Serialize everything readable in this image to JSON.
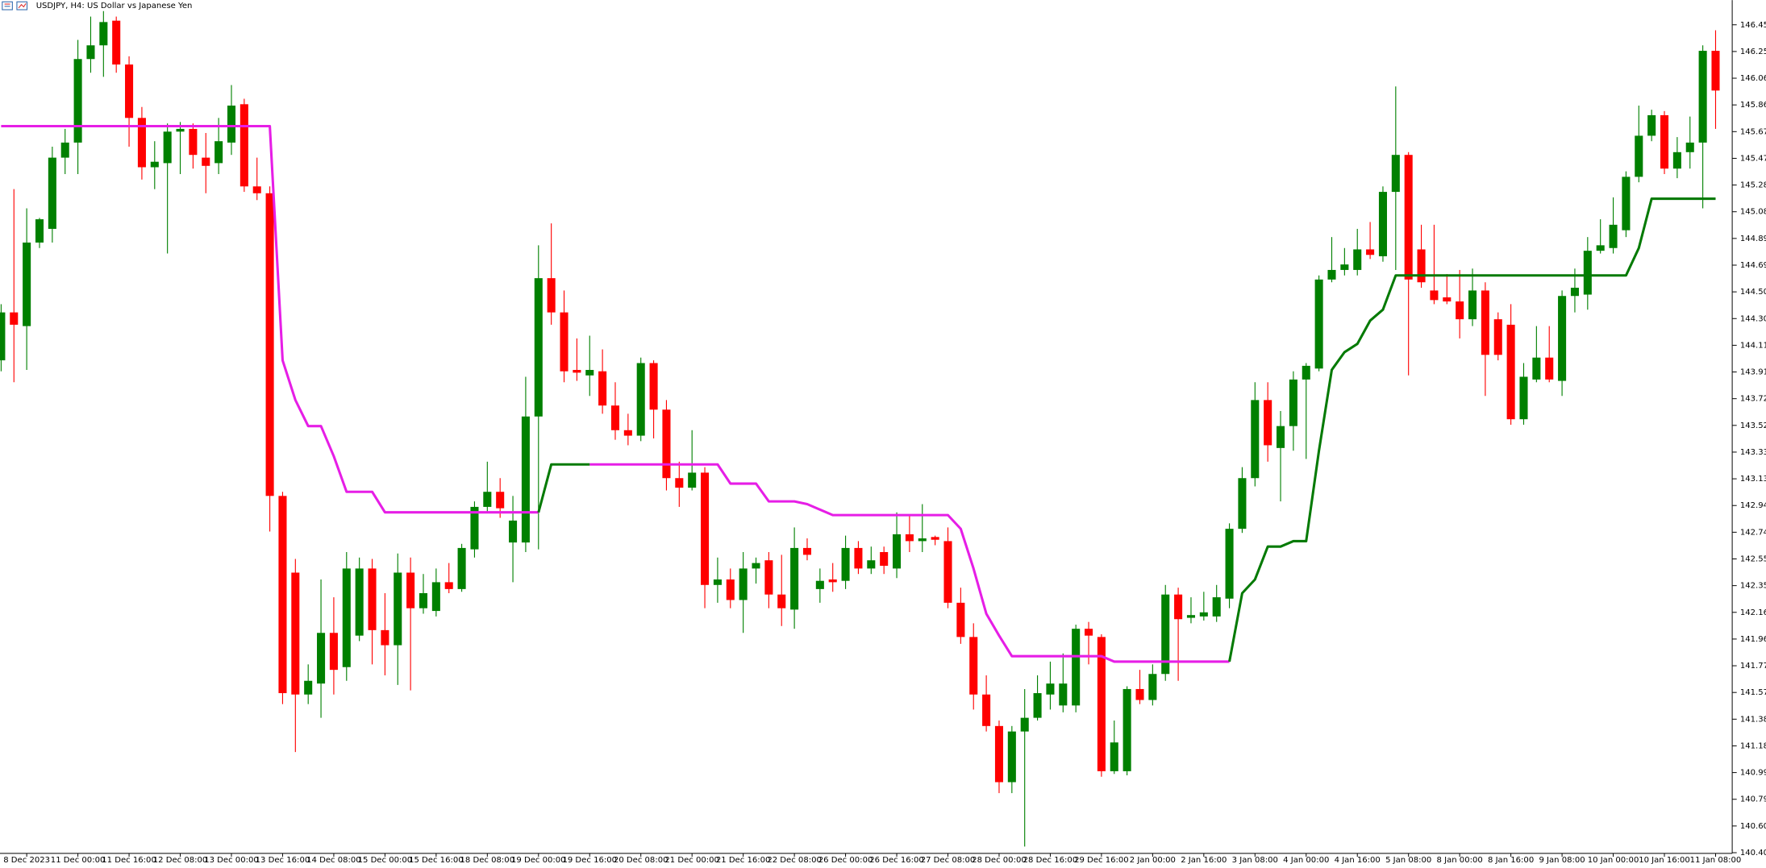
{
  "chart_data": {
    "type": "candlestick",
    "title": "USDJPY, H4:  US Dollar vs Japanese Yen",
    "up_color": "#008000",
    "down_color": "#ff0000",
    "ylim": [
      140.4,
      146.63
    ],
    "yticks": [
      {
        "value": 146.45,
        "label": "146.450"
      },
      146.255,
      {
        "value": 146.06,
        "label": "146.060"
      },
      145.865,
      {
        "value": 145.67,
        "label": "145.670"
      },
      145.475,
      {
        "value": 145.28,
        "label": "145.280"
      },
      145.085,
      {
        "value": 144.89,
        "label": "144.890"
      },
      144.695,
      {
        "value": 144.5,
        "label": "144.500"
      },
      144.305,
      {
        "value": 144.11,
        "label": "144.110"
      },
      143.915,
      {
        "value": 143.72,
        "label": "143.720"
      },
      143.525,
      {
        "value": 143.33,
        "label": "143.330"
      },
      143.135,
      {
        "value": 142.94,
        "label": "142.940"
      },
      142.745,
      {
        "value": 142.55,
        "label": "142.550"
      },
      142.355,
      {
        "value": 142.16,
        "label": "142.160"
      },
      141.965,
      {
        "value": 141.77,
        "label": "141.770"
      },
      141.575,
      {
        "value": 141.38,
        "label": "141.380"
      },
      141.185,
      {
        "value": 140.99,
        "label": "140.990"
      },
      140.795,
      {
        "value": 140.6,
        "label": "140.600"
      },
      140.405
    ],
    "categories": [
      null,
      null,
      "8 Dec 2023",
      null,
      null,
      null,
      "11 Dec 00:00",
      null,
      null,
      null,
      "11 Dec 16:00",
      null,
      null,
      null,
      "12 Dec 08:00",
      null,
      null,
      null,
      "13 Dec 00:00",
      null,
      null,
      null,
      "13 Dec 16:00",
      null,
      null,
      null,
      "14 Dec 08:00",
      null,
      null,
      null,
      "15 Dec 00:00",
      null,
      null,
      null,
      "15 Dec 16:00",
      null,
      null,
      null,
      "18 Dec 08:00",
      null,
      null,
      null,
      "19 Dec 00:00",
      null,
      null,
      null,
      "19 Dec 16:00",
      null,
      null,
      null,
      "20 Dec 08:00",
      null,
      null,
      null,
      "21 Dec 00:00",
      null,
      null,
      null,
      "21 Dec 16:00",
      null,
      null,
      null,
      "22 Dec 08:00",
      null,
      null,
      null,
      "26 Dec 00:00",
      null,
      null,
      null,
      "26 Dec 16:00",
      null,
      null,
      null,
      "27 Dec 08:00",
      null,
      null,
      null,
      "28 Dec 00:00",
      null,
      null,
      null,
      "28 Dec 16:00",
      null,
      null,
      null,
      "29 Dec 16:00",
      null,
      null,
      null,
      "2 Jan 00:00",
      null,
      null,
      null,
      "2 Jan 16:00",
      null,
      null,
      null,
      "3 Jan 08:00",
      null,
      null,
      null,
      "4 Jan 00:00",
      null,
      null,
      null,
      "4 Jan 16:00",
      null,
      null,
      null,
      "5 Jan 08:00",
      null,
      null,
      null,
      "8 Jan 00:00",
      null,
      null,
      null,
      "8 Jan 16:00",
      null,
      null,
      null,
      "9 Jan 08:00",
      null,
      null,
      null,
      "10 Jan 00:00",
      null,
      null,
      null,
      "10 Jan 16:00",
      null,
      null,
      null,
      "11 Jan 08:00"
    ],
    "open": [
      144.0,
      144.35,
      144.25,
      144.86,
      144.96,
      145.48,
      145.59,
      146.2,
      146.3,
      146.48,
      146.16,
      145.77,
      145.41,
      145.44,
      145.67,
      145.69,
      145.48,
      145.44,
      145.59,
      145.87,
      145.27,
      145.22,
      143.01,
      142.45,
      141.56,
      141.64,
      142.01,
      141.76,
      141.99,
      142.48,
      142.03,
      141.92,
      142.45,
      142.19,
      142.17,
      142.38,
      142.33,
      142.62,
      142.93,
      143.04,
      142.67,
      142.67,
      143.59,
      144.6,
      144.35,
      143.93,
      143.89,
      143.92,
      143.67,
      143.49,
      143.45,
      143.98,
      143.64,
      143.14,
      143.07,
      143.18,
      142.36,
      142.4,
      142.25,
      142.48,
      142.54,
      142.29,
      142.18,
      142.63,
      142.33,
      142.4,
      142.39,
      142.63,
      142.48,
      142.6,
      142.48,
      142.73,
      142.68,
      142.71,
      142.68,
      142.23,
      141.98,
      141.56,
      141.33,
      140.92,
      141.29,
      141.39,
      141.56,
      141.48,
      141.48,
      142.04,
      141.98,
      141.0,
      141.0,
      141.6,
      141.52,
      141.71,
      142.29,
      142.12,
      142.13,
      142.13,
      142.26,
      142.77,
      143.14,
      143.71,
      143.36,
      143.52,
      143.86,
      143.94,
      144.59,
      144.66,
      144.66,
      144.81,
      144.76,
      145.23,
      145.5,
      144.81,
      144.51,
      144.46,
      144.43,
      144.3,
      144.51,
      144.3,
      144.26,
      143.57,
      143.86,
      144.02,
      143.85,
      144.47,
      144.48,
      144.8,
      144.82,
      144.95,
      145.34,
      145.64,
      145.79,
      145.4,
      145.52,
      145.59,
      146.26
    ],
    "high": [
      144.41,
      145.25,
      145.11,
      145.04,
      145.56,
      145.69,
      146.34,
      146.51,
      146.55,
      146.51,
      146.22,
      145.85,
      145.6,
      145.73,
      145.74,
      145.73,
      145.66,
      145.77,
      146.01,
      145.91,
      145.48,
      145.27,
      143.04,
      142.55,
      141.78,
      142.4,
      142.27,
      142.6,
      142.56,
      142.55,
      142.3,
      142.59,
      142.56,
      142.44,
      142.48,
      142.52,
      142.66,
      142.97,
      143.26,
      143.14,
      143.01,
      143.88,
      144.84,
      145.0,
      144.51,
      144.16,
      144.18,
      144.08,
      143.84,
      143.61,
      144.02,
      144.0,
      143.71,
      143.26,
      143.49,
      143.22,
      142.56,
      142.48,
      142.6,
      142.56,
      142.6,
      142.58,
      142.78,
      142.7,
      142.48,
      142.52,
      142.72,
      142.68,
      142.64,
      142.64,
      142.89,
      142.87,
      142.95,
      142.72,
      142.78,
      142.34,
      142.08,
      141.7,
      141.37,
      141.33,
      141.6,
      141.7,
      141.8,
      141.86,
      142.07,
      142.09,
      142.0,
      141.37,
      141.62,
      141.74,
      141.78,
      142.36,
      142.34,
      142.27,
      142.31,
      142.36,
      142.81,
      143.22,
      143.84,
      143.84,
      143.63,
      143.92,
      143.98,
      144.62,
      144.9,
      144.82,
      144.96,
      145.01,
      145.27,
      146.0,
      145.52,
      144.99,
      144.99,
      144.63,
      144.66,
      144.67,
      144.57,
      144.35,
      144.41,
      143.98,
      144.25,
      144.25,
      144.51,
      144.67,
      144.9,
      145.03,
      145.19,
      145.38,
      145.86,
      145.83,
      145.82,
      145.63,
      145.78,
      146.3,
      146.41
    ],
    "low": [
      143.92,
      143.84,
      143.93,
      144.82,
      144.86,
      145.36,
      145.36,
      146.1,
      146.07,
      146.1,
      145.56,
      145.32,
      145.25,
      144.78,
      145.36,
      145.4,
      145.22,
      145.36,
      145.5,
      145.23,
      145.17,
      142.75,
      141.49,
      141.14,
      141.49,
      141.39,
      141.56,
      141.66,
      141.95,
      141.78,
      141.7,
      141.63,
      141.59,
      142.15,
      142.13,
      142.3,
      142.31,
      142.56,
      142.89,
      142.85,
      142.38,
      142.6,
      142.62,
      144.26,
      143.84,
      143.85,
      143.74,
      143.61,
      143.42,
      143.38,
      143.41,
      143.43,
      143.05,
      142.93,
      143.05,
      142.19,
      142.23,
      142.19,
      142.01,
      142.37,
      142.19,
      142.06,
      142.04,
      142.54,
      142.23,
      142.31,
      142.33,
      142.44,
      142.44,
      142.44,
      142.41,
      142.6,
      142.6,
      142.65,
      142.19,
      141.93,
      141.45,
      141.29,
      140.84,
      140.84,
      140.45,
      141.37,
      141.45,
      141.43,
      141.43,
      141.78,
      140.96,
      140.98,
      140.97,
      141.49,
      141.48,
      141.66,
      141.66,
      142.08,
      142.1,
      142.09,
      142.19,
      142.74,
      143.08,
      143.26,
      142.97,
      143.34,
      143.28,
      143.92,
      144.57,
      144.62,
      144.62,
      144.74,
      144.72,
      144.66,
      143.89,
      144.53,
      144.41,
      144.41,
      144.16,
      144.25,
      143.74,
      144.0,
      143.53,
      143.53,
      143.84,
      143.84,
      143.74,
      144.35,
      144.37,
      144.78,
      144.78,
      144.9,
      145.3,
      145.6,
      145.36,
      145.33,
      145.4,
      145.11,
      145.69
    ],
    "close": [
      144.35,
      144.26,
      144.86,
      145.03,
      145.48,
      145.59,
      146.2,
      146.3,
      146.47,
      146.16,
      145.77,
      145.41,
      145.45,
      145.67,
      145.69,
      145.5,
      145.42,
      145.6,
      145.86,
      145.27,
      145.22,
      143.01,
      141.57,
      141.56,
      141.66,
      142.01,
      141.74,
      142.48,
      142.48,
      142.03,
      141.92,
      142.45,
      142.19,
      142.3,
      142.38,
      142.33,
      142.63,
      142.93,
      143.04,
      142.92,
      142.83,
      143.59,
      144.6,
      144.35,
      143.92,
      143.91,
      143.93,
      143.67,
      143.49,
      143.45,
      143.98,
      143.64,
      143.14,
      143.07,
      143.18,
      142.36,
      142.4,
      142.25,
      142.48,
      142.52,
      142.29,
      142.19,
      142.63,
      142.58,
      142.39,
      142.38,
      142.63,
      142.48,
      142.54,
      142.5,
      142.73,
      142.68,
      142.7,
      142.69,
      142.23,
      141.98,
      141.56,
      141.33,
      140.92,
      141.29,
      141.39,
      141.57,
      141.64,
      141.64,
      142.04,
      141.99,
      141.0,
      141.21,
      141.6,
      141.52,
      141.71,
      142.29,
      142.11,
      142.14,
      142.16,
      142.27,
      142.77,
      143.14,
      143.71,
      143.38,
      143.52,
      143.86,
      143.96,
      144.59,
      144.66,
      144.7,
      144.81,
      144.77,
      145.23,
      145.5,
      144.59,
      144.57,
      144.44,
      144.43,
      144.3,
      144.51,
      144.04,
      144.04,
      143.57,
      143.88,
      144.02,
      143.86,
      144.47,
      144.53,
      144.8,
      144.84,
      144.99,
      145.34,
      145.64,
      145.79,
      145.4,
      145.52,
      145.59,
      146.26,
      145.97
    ],
    "lines": [
      {
        "color": "#e61ee6",
        "values": [
          145.71,
          145.71,
          145.71,
          145.71,
          145.71,
          145.71,
          145.71,
          145.71,
          145.71,
          145.71,
          145.71,
          145.71,
          145.71,
          145.71,
          145.71,
          145.71,
          145.71,
          145.71,
          145.71,
          145.71,
          145.71,
          145.71,
          144.0,
          143.71,
          143.52,
          143.52,
          143.3,
          143.04,
          143.04,
          143.04,
          142.89,
          142.89,
          142.89,
          142.89,
          142.89,
          142.89,
          142.89,
          142.89,
          142.89,
          142.89,
          142.89,
          142.89,
          142.89,
          null,
          null,
          null,
          143.24,
          143.24,
          143.24,
          143.24,
          143.24,
          143.24,
          143.24,
          143.24,
          143.24,
          143.24,
          143.24,
          143.1,
          143.1,
          143.1,
          142.97,
          142.97,
          142.97,
          142.95,
          142.91,
          142.87,
          142.87,
          142.87,
          142.87,
          142.87,
          142.87,
          142.87,
          142.87,
          142.87,
          142.87,
          142.77,
          142.48,
          142.15,
          141.99,
          141.84,
          141.84,
          141.84,
          141.84,
          141.84,
          141.84,
          141.84,
          141.84,
          141.8,
          141.8,
          141.8,
          141.8,
          141.8,
          141.8,
          141.8,
          141.8,
          141.8,
          141.8,
          null,
          null,
          null,
          null,
          null,
          null,
          null,
          null,
          null,
          null,
          null,
          null,
          null,
          null,
          null,
          null,
          null,
          null,
          null,
          null,
          null,
          null,
          null,
          null,
          null,
          null,
          null,
          null,
          null,
          null,
          null,
          null,
          null,
          null,
          null,
          null,
          null,
          null
        ]
      },
      {
        "color": "#047a04",
        "values": [
          null,
          null,
          null,
          null,
          null,
          null,
          null,
          null,
          null,
          null,
          null,
          null,
          null,
          null,
          null,
          null,
          null,
          null,
          null,
          null,
          null,
          null,
          null,
          null,
          null,
          null,
          null,
          null,
          null,
          null,
          null,
          null,
          null,
          null,
          null,
          null,
          null,
          null,
          null,
          null,
          null,
          null,
          142.89,
          143.24,
          143.24,
          143.24,
          143.24,
          null,
          null,
          null,
          null,
          null,
          null,
          null,
          null,
          null,
          null,
          null,
          null,
          null,
          null,
          null,
          null,
          null,
          null,
          null,
          null,
          null,
          null,
          null,
          null,
          null,
          null,
          null,
          null,
          null,
          null,
          null,
          null,
          null,
          null,
          null,
          null,
          null,
          null,
          null,
          null,
          null,
          null,
          null,
          null,
          null,
          null,
          null,
          null,
          null,
          141.8,
          142.3,
          142.4,
          142.64,
          142.64,
          142.68,
          142.68,
          143.34,
          143.93,
          144.06,
          144.12,
          144.29,
          144.37,
          144.62,
          144.62,
          144.62,
          144.62,
          144.62,
          144.62,
          144.62,
          144.62,
          144.62,
          144.62,
          144.62,
          144.62,
          144.62,
          144.62,
          144.62,
          144.62,
          144.62,
          144.62,
          144.62,
          144.82,
          145.18,
          145.18,
          145.18,
          145.18,
          145.18,
          145.18
        ]
      }
    ]
  }
}
